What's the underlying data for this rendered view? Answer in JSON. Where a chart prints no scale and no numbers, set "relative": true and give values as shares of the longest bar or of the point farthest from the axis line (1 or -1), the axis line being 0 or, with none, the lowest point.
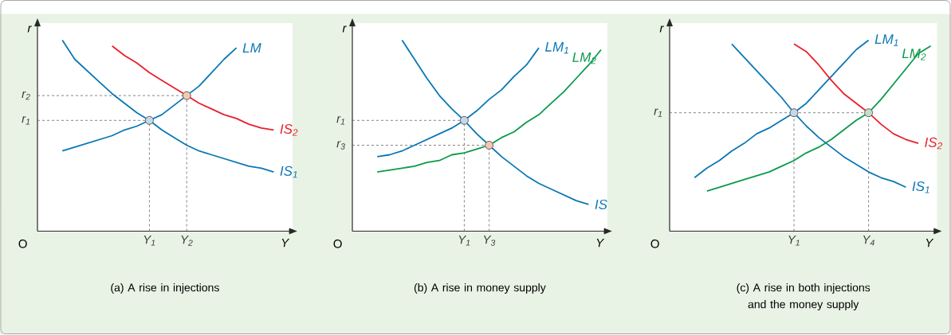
{
  "chart_data": [
    {
      "type": "line",
      "relative": true,
      "title": "(a)  A rise in injections",
      "xlabel": "Y",
      "ylabel": "r",
      "annotations": [
        "O"
      ],
      "categories": [
        null,
        null,
        null,
        null,
        null,
        null,
        null,
        null,
        null,
        "Y$_{1}$",
        null,
        null,
        "Y$_{2}$",
        null,
        null,
        null,
        null,
        null,
        null,
        null,
        null
      ],
      "series": [
        {
          "name": "IS$_{1}$",
          "color": "#0a77b5",
          "values": [
            null,
            null,
            1.0,
            0.9,
            0.84,
            0.78,
            0.72,
            0.67,
            0.62,
            0.58,
            0.53,
            0.49,
            0.45,
            0.42,
            0.4,
            0.38,
            0.36,
            0.34,
            0.33,
            0.31,
            null
          ]
        },
        {
          "name": "LM",
          "color": "#0a77b5",
          "values": [
            null,
            null,
            0.42,
            0.44,
            0.46,
            0.48,
            0.5,
            0.53,
            0.55,
            0.58,
            0.61,
            0.66,
            0.71,
            0.76,
            0.83,
            0.9,
            0.96,
            null,
            null,
            null,
            null
          ]
        },
        {
          "name": "IS$_{2}$",
          "color": "#e8202a",
          "values": [
            null,
            null,
            null,
            null,
            null,
            null,
            0.97,
            0.92,
            0.88,
            0.83,
            0.79,
            0.75,
            0.71,
            0.67,
            0.64,
            0.61,
            0.59,
            0.56,
            0.54,
            0.53,
            null
          ]
        },
        {
          "type": "scatter",
          "marker": "circle",
          "values": [
            null,
            null,
            null,
            null,
            null,
            null,
            null,
            null,
            null,
            0.58,
            null,
            null,
            0.71,
            null,
            null,
            null,
            null,
            null,
            null,
            null,
            null
          ],
          "colors": [
            null,
            null,
            null,
            null,
            null,
            null,
            null,
            null,
            null,
            "#c6d7ea",
            null,
            null,
            "#f6c7b1",
            null,
            null,
            null,
            null,
            null,
            null,
            null,
            null
          ]
        }
      ],
      "ref_lines": [
        {
          "axis": "y",
          "value": 0.58,
          "label": "r$_{1}$",
          "line_style": "dashed"
        },
        {
          "axis": "y",
          "value": 0.71,
          "label": "r$_{2}$",
          "line_style": "dashed"
        }
      ]
    },
    {
      "type": "line",
      "relative": true,
      "title": "(b)  A rise in money supply",
      "xlabel": "Y",
      "ylabel": "r",
      "annotations": [
        "O"
      ],
      "categories": [
        null,
        null,
        null,
        null,
        null,
        null,
        null,
        null,
        null,
        "Y$_{1}$",
        null,
        "Y$_{3}$",
        null,
        null,
        null,
        null,
        null,
        null,
        null,
        null,
        null
      ],
      "series": [
        {
          "name": "IS",
          "color": "#0a77b5",
          "values": [
            null,
            null,
            null,
            null,
            1.0,
            0.9,
            0.8,
            0.71,
            0.64,
            0.58,
            0.51,
            0.45,
            0.39,
            0.34,
            0.29,
            0.25,
            0.22,
            0.19,
            0.16,
            0.14,
            null
          ]
        },
        {
          "name": "LM$_{1}$",
          "color": "#0a77b5",
          "values": [
            null,
            null,
            0.39,
            0.4,
            0.42,
            0.45,
            0.48,
            0.51,
            0.54,
            0.58,
            0.63,
            0.69,
            0.74,
            0.81,
            0.87,
            0.96,
            null,
            null,
            null,
            null,
            null
          ]
        },
        {
          "name": "LM$_{2}$",
          "color": "#0b9a4b",
          "values": [
            null,
            null,
            0.31,
            0.32,
            0.33,
            0.34,
            0.36,
            0.37,
            0.4,
            0.41,
            0.43,
            0.45,
            0.49,
            0.52,
            0.57,
            0.61,
            0.67,
            0.73,
            0.8,
            0.87,
            0.95
          ]
        },
        {
          "type": "scatter",
          "marker": "circle",
          "values": [
            null,
            null,
            null,
            null,
            null,
            null,
            null,
            null,
            null,
            0.58,
            null,
            0.45,
            null,
            null,
            null,
            null,
            null,
            null,
            null,
            null,
            null
          ],
          "colors": [
            null,
            null,
            null,
            null,
            null,
            null,
            null,
            null,
            null,
            "#c6d7ea",
            null,
            "#f6c7b1",
            null,
            null,
            null,
            null,
            null,
            null,
            null,
            null,
            null
          ]
        }
      ],
      "ref_lines": [
        {
          "axis": "y",
          "value": 0.58,
          "label": "r$_{1}$",
          "line_style": "dashed"
        },
        {
          "axis": "y",
          "value": 0.45,
          "label": "r$_{3}$",
          "line_style": "dashed"
        }
      ]
    },
    {
      "type": "line",
      "relative": true,
      "title": "(c)  A rise in both injections and the money supply",
      "xlabel": "Y",
      "ylabel": "r",
      "annotations": [
        "O"
      ],
      "categories": [
        null,
        null,
        null,
        null,
        null,
        null,
        null,
        null,
        null,
        null,
        "Y$_{1}$",
        null,
        null,
        null,
        null,
        null,
        "Y$_{4}$",
        null,
        null,
        null,
        null,
        null
      ],
      "series": [
        {
          "name": "IS$_{1}$",
          "color": "#0a77b5",
          "values": [
            null,
            null,
            null,
            null,
            null,
            0.98,
            0.91,
            0.84,
            0.77,
            0.7,
            0.62,
            0.55,
            0.49,
            0.44,
            0.39,
            0.35,
            0.31,
            0.28,
            0.26,
            0.23,
            null,
            null
          ]
        },
        {
          "name": "LM$_{1}$",
          "color": "#0a77b5",
          "values": [
            null,
            null,
            0.28,
            0.33,
            0.37,
            0.42,
            0.46,
            0.51,
            0.54,
            0.58,
            0.62,
            0.67,
            0.74,
            0.81,
            0.88,
            0.95,
            1.0,
            null,
            null,
            null,
            null,
            null
          ]
        },
        {
          "name": "IS$_{2}$",
          "color": "#e8202a",
          "values": [
            null,
            null,
            null,
            null,
            null,
            null,
            null,
            null,
            null,
            null,
            0.98,
            0.94,
            0.87,
            0.79,
            0.72,
            0.67,
            0.62,
            0.56,
            0.51,
            0.48,
            0.46,
            null
          ]
        },
        {
          "name": "LM$_{2}$",
          "color": "#0b9a4b",
          "values": [
            null,
            null,
            null,
            0.21,
            0.23,
            0.25,
            0.27,
            0.29,
            0.31,
            0.34,
            0.37,
            0.41,
            0.44,
            0.48,
            0.53,
            0.58,
            0.62,
            0.69,
            0.77,
            0.85,
            0.93,
            0.97
          ]
        },
        {
          "type": "scatter",
          "marker": "circle",
          "values": [
            null,
            null,
            null,
            null,
            null,
            null,
            null,
            null,
            null,
            null,
            0.62,
            null,
            null,
            null,
            null,
            null,
            0.62,
            null,
            null,
            null,
            null,
            null
          ],
          "colors": [
            null,
            null,
            null,
            null,
            null,
            null,
            null,
            null,
            null,
            null,
            "#c6d7ea",
            null,
            null,
            null,
            null,
            null,
            "#c7dcc6",
            null,
            null,
            null,
            null,
            null
          ]
        }
      ],
      "ref_lines": [
        {
          "axis": "y",
          "value": 0.62,
          "label": "r$_{1}$",
          "line_style": "dashed"
        }
      ]
    }
  ]
}
